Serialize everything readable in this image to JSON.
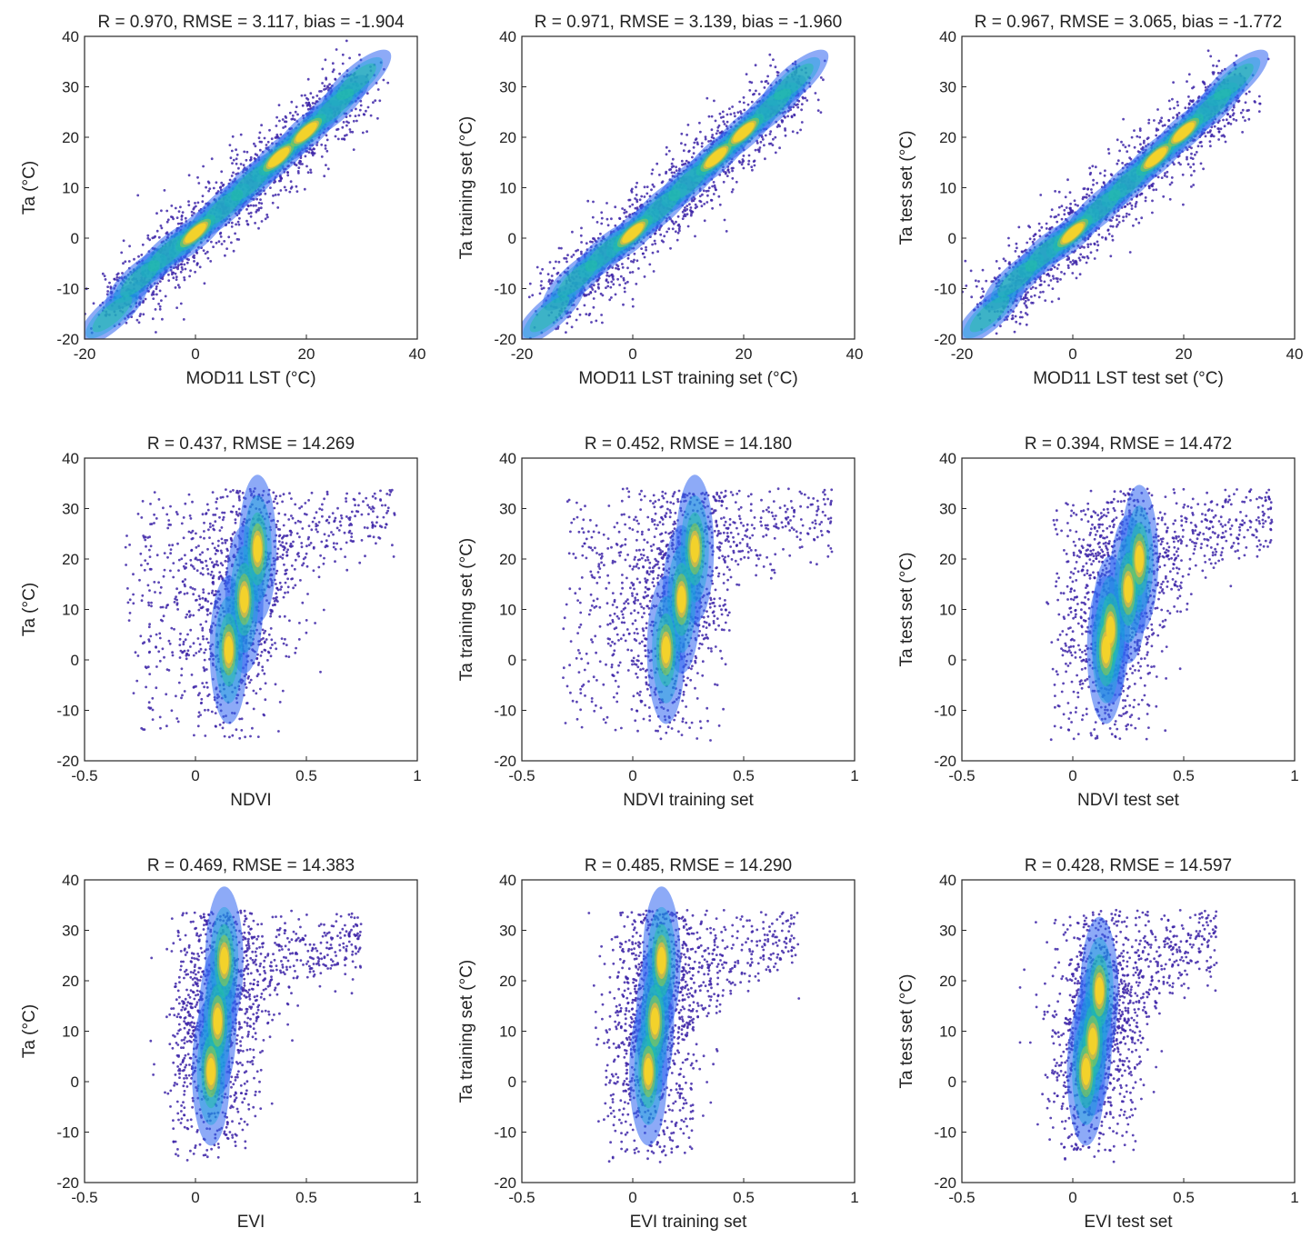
{
  "chart_data": [
    {
      "type": "scatter",
      "density": true,
      "title": "R = 0.970, RMSE = 3.117, bias = -1.904",
      "xlabel": "MOD11 LST (°C)",
      "ylabel": "Ta (°C)",
      "xlim": [
        -20,
        40
      ],
      "ylim": [
        -20,
        40
      ],
      "xticks": [
        "-20",
        "0",
        "20",
        "40"
      ],
      "yticks": [
        "-20",
        "-10",
        "0",
        "10",
        "20",
        "30",
        "40"
      ],
      "ridge": [
        [
          -15,
          -15
        ],
        [
          -10,
          -8
        ],
        [
          -5,
          -3
        ],
        [
          0,
          1
        ],
        [
          5,
          6
        ],
        [
          10,
          11
        ],
        [
          15,
          16
        ],
        [
          20,
          21
        ],
        [
          25,
          26
        ],
        [
          29,
          31
        ]
      ],
      "density_peaks": [
        [
          0,
          1
        ],
        [
          15,
          16
        ],
        [
          22,
          24
        ]
      ],
      "spread": {
        "x": [
          -15,
          30
        ],
        "y": [
          -16,
          34
        ]
      }
    },
    {
      "type": "scatter",
      "density": true,
      "title": "R = 0.971, RMSE = 3.139, bias = -1.960",
      "xlabel": "MOD11 LST training set (°C)",
      "ylabel": "Ta  training set (°C)",
      "xlim": [
        -20,
        40
      ],
      "ylim": [
        -20,
        40
      ],
      "xticks": [
        "-20",
        "0",
        "20",
        "40"
      ],
      "yticks": [
        "-20",
        "-10",
        "0",
        "10",
        "20",
        "30",
        "40"
      ],
      "ridge": [
        [
          -15,
          -15
        ],
        [
          -10,
          -8
        ],
        [
          -5,
          -3
        ],
        [
          0,
          1
        ],
        [
          5,
          6
        ],
        [
          10,
          11
        ],
        [
          15,
          16
        ],
        [
          20,
          21
        ],
        [
          25,
          26
        ],
        [
          29,
          31
        ]
      ],
      "density_peaks": [
        [
          0,
          1
        ],
        [
          15,
          16
        ],
        [
          22,
          24
        ]
      ],
      "spread": {
        "x": [
          -15,
          30
        ],
        "y": [
          -16,
          34
        ]
      }
    },
    {
      "type": "scatter",
      "density": true,
      "title": "R = 0.967, RMSE = 3.065, bias = -1.772",
      "xlabel": "MOD11 LST test set (°C)",
      "ylabel": "Ta test set (°C)",
      "xlim": [
        -20,
        40
      ],
      "ylim": [
        -20,
        40
      ],
      "xticks": [
        "-20",
        "0",
        "20",
        "40"
      ],
      "yticks": [
        "-20",
        "-10",
        "0",
        "10",
        "20",
        "30",
        "40"
      ],
      "ridge": [
        [
          -15,
          -15
        ],
        [
          -10,
          -8
        ],
        [
          -5,
          -3
        ],
        [
          0,
          1
        ],
        [
          5,
          6
        ],
        [
          10,
          11
        ],
        [
          15,
          16
        ],
        [
          20,
          21
        ],
        [
          25,
          26
        ],
        [
          29,
          31
        ]
      ],
      "density_peaks": [
        [
          2,
          3
        ],
        [
          10,
          11
        ],
        [
          18,
          19
        ]
      ],
      "spread": {
        "x": [
          -18,
          31
        ],
        "y": [
          -16,
          34
        ]
      }
    },
    {
      "type": "scatter",
      "density": true,
      "title": "R = 0.437, RMSE = 14.269",
      "xlabel": "NDVI",
      "ylabel": "Ta (°C)",
      "xlim": [
        -0.5,
        1
      ],
      "ylim": [
        -20,
        40
      ],
      "xticks": [
        "-0.5",
        "0",
        "0.5",
        "1"
      ],
      "yticks": [
        "-20",
        "-10",
        "0",
        "10",
        "20",
        "30",
        "40"
      ],
      "density_peaks": [
        [
          0.15,
          2
        ],
        [
          0.22,
          12
        ],
        [
          0.28,
          22
        ]
      ],
      "spread": {
        "x": [
          -0.45,
          0.9
        ],
        "y": [
          -16,
          34
        ]
      }
    },
    {
      "type": "scatter",
      "density": true,
      "title": "R = 0.452, RMSE = 14.180",
      "xlabel": "NDVI training set",
      "ylabel": "Ta training set (°C)",
      "xlim": [
        -0.5,
        1
      ],
      "ylim": [
        -20,
        40
      ],
      "xticks": [
        "-0.5",
        "0",
        "0.5",
        "1"
      ],
      "yticks": [
        "-20",
        "-10",
        "0",
        "10",
        "20",
        "30",
        "40"
      ],
      "density_peaks": [
        [
          0.15,
          2
        ],
        [
          0.22,
          12
        ],
        [
          0.28,
          22
        ]
      ],
      "spread": {
        "x": [
          -0.45,
          0.9
        ],
        "y": [
          -16,
          34
        ]
      }
    },
    {
      "type": "scatter",
      "density": true,
      "title": "R = 0.394, RMSE = 14.472",
      "xlabel": "NDVI test set",
      "ylabel": "Ta test set (°C)",
      "xlim": [
        -0.5,
        1
      ],
      "ylim": [
        -20,
        40
      ],
      "xticks": [
        "-0.5",
        "0",
        "0.5",
        "1"
      ],
      "yticks": [
        "-20",
        "-10",
        "0",
        "10",
        "20",
        "30",
        "40"
      ],
      "density_peaks": [
        [
          0.15,
          2
        ],
        [
          0.17,
          6
        ],
        [
          0.25,
          14
        ],
        [
          0.3,
          20
        ]
      ],
      "spread": {
        "x": [
          -0.2,
          0.9
        ],
        "y": [
          -16,
          34
        ]
      }
    },
    {
      "type": "scatter",
      "density": true,
      "title": "R = 0.469, RMSE = 14.383",
      "xlabel": "EVI",
      "ylabel": "Ta (°C)",
      "xlim": [
        -0.5,
        1
      ],
      "ylim": [
        -20,
        40
      ],
      "xticks": [
        "-0.5",
        "0",
        "0.5",
        "1"
      ],
      "yticks": [
        "-20",
        "-10",
        "0",
        "10",
        "20",
        "30",
        "40"
      ],
      "density_peaks": [
        [
          0.07,
          2
        ],
        [
          0.1,
          12
        ],
        [
          0.13,
          24
        ]
      ],
      "spread": {
        "x": [
          -0.2,
          0.75
        ],
        "y": [
          -16,
          34
        ]
      }
    },
    {
      "type": "scatter",
      "density": true,
      "title": "R = 0.485, RMSE = 14.290",
      "xlabel": "EVI training set",
      "ylabel": "Ta training set (°C)",
      "xlim": [
        -0.5,
        1
      ],
      "ylim": [
        -20,
        40
      ],
      "xticks": [
        "-0.5",
        "0",
        "0.5",
        "1"
      ],
      "yticks": [
        "-20",
        "-10",
        "0",
        "10",
        "20",
        "30",
        "40"
      ],
      "density_peaks": [
        [
          0.07,
          2
        ],
        [
          0.1,
          12
        ],
        [
          0.13,
          24
        ]
      ],
      "spread": {
        "x": [
          -0.2,
          0.75
        ],
        "y": [
          -16,
          34
        ]
      }
    },
    {
      "type": "scatter",
      "density": true,
      "title": "R = 0.428, RMSE = 14.597",
      "xlabel": "EVI test set",
      "ylabel": "Ta test set (°C)",
      "xlim": [
        -0.5,
        1
      ],
      "ylim": [
        -20,
        40
      ],
      "xticks": [
        "-0.5",
        "0",
        "0.5",
        "1"
      ],
      "yticks": [
        "-20",
        "-10",
        "0",
        "10",
        "20",
        "30",
        "40"
      ],
      "density_peaks": [
        [
          0.06,
          2
        ],
        [
          0.09,
          8
        ],
        [
          0.12,
          18
        ]
      ],
      "spread": {
        "x": [
          -0.1,
          0.65
        ],
        "y": [
          -16,
          34
        ]
      }
    }
  ],
  "colormap": [
    "#3e26a8",
    "#2f64f0",
    "#18a3d9",
    "#22bfa3",
    "#8ac84e",
    "#f0b93a",
    "#fad626"
  ]
}
